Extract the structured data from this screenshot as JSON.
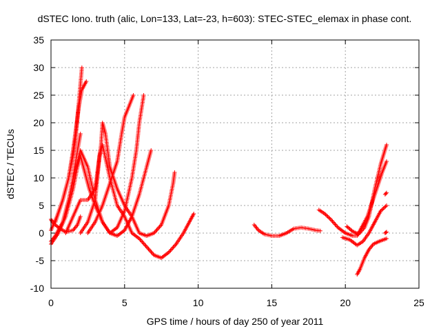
{
  "chart_data": {
    "type": "scatter",
    "title": "dSTEC Iono. truth (alic, Lon=133, Lat=-23, h=603): STEC-STEC_elemax in phase cont.",
    "xlabel": "GPS time / hours of day 250 of year 2011",
    "ylabel": "dSTEC  / TECUs",
    "xlim": [
      0,
      25
    ],
    "ylim": [
      -10,
      35
    ],
    "xticks": [
      0,
      5,
      10,
      15,
      20,
      25
    ],
    "yticks": [
      -10,
      -5,
      0,
      5,
      10,
      15,
      20,
      25,
      30,
      35
    ],
    "grid": true,
    "marker": "+",
    "color": "#ff0000",
    "series": [
      {
        "points": [
          [
            0.0,
            0.5
          ],
          [
            0.4,
            3
          ],
          [
            0.8,
            6
          ],
          [
            1.2,
            10
          ],
          [
            1.5,
            14
          ],
          [
            1.7,
            18
          ],
          [
            1.9,
            24
          ],
          [
            2.1,
            30
          ]
        ]
      },
      {
        "points": [
          [
            0.3,
            2
          ],
          [
            0.8,
            6
          ],
          [
            1.2,
            10
          ],
          [
            1.5,
            15
          ],
          [
            1.7,
            19
          ],
          [
            1.9,
            23
          ],
          [
            2.1,
            26
          ],
          [
            2.4,
            27.5
          ]
        ]
      },
      {
        "points": [
          [
            0.0,
            -1.5
          ],
          [
            0.3,
            -0.5
          ],
          [
            0.8,
            2
          ],
          [
            1.2,
            6
          ],
          [
            1.5,
            10
          ],
          [
            1.8,
            15
          ],
          [
            2.0,
            18
          ]
        ]
      },
      {
        "points": [
          [
            0.0,
            2.5
          ],
          [
            0.1,
            2
          ],
          [
            0.5,
            1
          ],
          [
            1.0,
            0.2
          ],
          [
            1.5,
            0.5
          ],
          [
            1.8,
            1.5
          ],
          [
            2.0,
            3
          ]
        ]
      },
      {
        "points": [
          [
            0.0,
            -2
          ],
          [
            0.5,
            0
          ],
          [
            1.0,
            3
          ],
          [
            1.5,
            8
          ],
          [
            1.8,
            12
          ],
          [
            2.0,
            14
          ],
          [
            2.3,
            11
          ],
          [
            2.6,
            8
          ],
          [
            3.0,
            5
          ],
          [
            3.5,
            2
          ],
          [
            4.0,
            0
          ],
          [
            4.5,
            -0.5
          ],
          [
            5.0,
            0.5
          ],
          [
            5.5,
            3
          ],
          [
            6.0,
            7
          ],
          [
            6.5,
            12
          ],
          [
            6.8,
            15
          ]
        ]
      },
      {
        "points": [
          [
            1.5,
            10
          ],
          [
            2.0,
            15
          ],
          [
            2.5,
            12
          ],
          [
            3.0,
            6
          ],
          [
            3.5,
            2
          ],
          [
            4.0,
            0
          ],
          [
            4.5,
            1
          ],
          [
            5.0,
            4
          ],
          [
            5.5,
            10
          ],
          [
            5.8,
            15
          ],
          [
            6.0,
            20
          ],
          [
            6.3,
            25
          ]
        ]
      },
      {
        "points": [
          [
            1.0,
            0
          ],
          [
            1.5,
            3
          ],
          [
            2.0,
            6
          ],
          [
            2.5,
            6
          ],
          [
            3.0,
            8
          ],
          [
            3.4,
            16
          ],
          [
            3.5,
            20
          ],
          [
            3.7,
            18
          ],
          [
            4.0,
            12
          ],
          [
            4.5,
            8
          ],
          [
            5.0,
            5
          ],
          [
            5.5,
            3
          ],
          [
            6.0,
            0
          ],
          [
            6.5,
            -0.5
          ],
          [
            7.0,
            0
          ],
          [
            7.5,
            1.5
          ],
          [
            8.0,
            5
          ],
          [
            8.3,
            9
          ],
          [
            8.4,
            11
          ]
        ]
      },
      {
        "points": [
          [
            2.0,
            0
          ],
          [
            2.5,
            2
          ],
          [
            3.0,
            6
          ],
          [
            3.3,
            14
          ],
          [
            3.5,
            16
          ],
          [
            4.0,
            10
          ],
          [
            4.5,
            5
          ],
          [
            5.0,
            3
          ],
          [
            5.5,
            0
          ],
          [
            6.0,
            -1
          ],
          [
            6.5,
            -2.5
          ],
          [
            7.0,
            -4
          ],
          [
            7.5,
            -4.5
          ],
          [
            8.0,
            -3.5
          ],
          [
            8.5,
            -2
          ],
          [
            9.0,
            0
          ],
          [
            9.5,
            2.5
          ],
          [
            9.7,
            3.5
          ]
        ]
      },
      {
        "points": [
          [
            2.5,
            0
          ],
          [
            3.0,
            2
          ],
          [
            3.5,
            5
          ],
          [
            4.0,
            9
          ],
          [
            4.5,
            13
          ],
          [
            4.8,
            18
          ],
          [
            5.0,
            21
          ],
          [
            5.3,
            23
          ],
          [
            5.6,
            25
          ]
        ]
      },
      {
        "points": [
          [
            13.8,
            1.5
          ],
          [
            14.1,
            0.5
          ],
          [
            14.5,
            -0.2
          ],
          [
            15.0,
            -0.5
          ],
          [
            15.5,
            -0.5
          ],
          [
            16.0,
            0
          ],
          [
            16.5,
            0.8
          ],
          [
            17.0,
            1
          ],
          [
            17.5,
            0.8
          ],
          [
            18.0,
            0.5
          ],
          [
            18.3,
            0.4
          ]
        ]
      },
      {
        "points": [
          [
            18.2,
            4.2
          ],
          [
            18.6,
            3.5
          ],
          [
            19.0,
            2.5
          ],
          [
            19.5,
            1
          ],
          [
            20.0,
            0
          ],
          [
            20.5,
            -0.5
          ],
          [
            20.8,
            -0.5
          ],
          [
            21.0,
            0.5
          ],
          [
            21.5,
            3
          ],
          [
            22.0,
            7
          ],
          [
            22.5,
            11
          ],
          [
            22.8,
            13
          ]
        ]
      },
      {
        "points": [
          [
            20.1,
            1.2
          ],
          [
            20.5,
            0.3
          ],
          [
            20.9,
            -0.2
          ],
          [
            21.3,
            1
          ],
          [
            21.6,
            3
          ],
          [
            22.0,
            8
          ],
          [
            22.4,
            12.5
          ],
          [
            22.8,
            16
          ]
        ]
      },
      {
        "points": [
          [
            19.8,
            -0.8
          ],
          [
            20.3,
            -1.2
          ],
          [
            20.8,
            -2.2
          ],
          [
            21.2,
            -1.5
          ],
          [
            21.6,
            0
          ],
          [
            22.0,
            2
          ],
          [
            22.4,
            4
          ],
          [
            22.8,
            5
          ]
        ]
      },
      {
        "points": [
          [
            20.8,
            -7.5
          ],
          [
            21.0,
            -6.5
          ],
          [
            21.3,
            -4.5
          ],
          [
            21.6,
            -3
          ],
          [
            21.9,
            -2
          ],
          [
            22.3,
            -1.5
          ],
          [
            22.8,
            -1
          ]
        ]
      },
      {
        "points": [
          [
            22.7,
            7
          ],
          [
            22.8,
            7.3
          ]
        ]
      },
      {
        "points": [
          [
            22.7,
            0
          ],
          [
            22.8,
            0.2
          ]
        ]
      }
    ]
  }
}
